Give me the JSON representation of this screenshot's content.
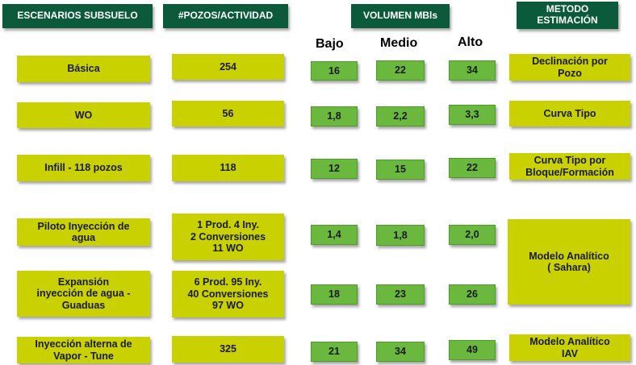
{
  "headers": {
    "scenarios": "ESCENARIOS SUBSUELO",
    "wells": "#POZOS/ACTIVIDAD",
    "volume": "VOLUMEN MBls",
    "method": "METODO\nESTIMACIÓN"
  },
  "levels": {
    "low": "Bajo",
    "mid": "Medio",
    "high": "Alto"
  },
  "rows": [
    {
      "scenario": "Básica",
      "wells": "254",
      "low": "16",
      "mid": "22",
      "high": "34",
      "method": "Declinación por\nPozo"
    },
    {
      "scenario": "WO",
      "wells": "56",
      "low": "1,8",
      "mid": "2,2",
      "high": "3,3",
      "method": "Curva Tipo"
    },
    {
      "scenario": "Infill - 118 pozos",
      "wells": "118",
      "low": "12",
      "mid": "15",
      "high": "22",
      "method": "Curva Tipo por\nBloque/Formación"
    },
    {
      "scenario": "Piloto Inyección de\nagua",
      "wells": "1 Prod.  4 Iny.\n2 Conversiones\n11 WO",
      "low": "1,4",
      "mid": "1,8",
      "high": "2,0"
    },
    {
      "scenario": "Expansión\ninyección de agua -\nGuaduas",
      "wells": "6 Prod.  95 Iny.\n40 Conversiones\n97 WO",
      "low": "18",
      "mid": "23",
      "high": "26"
    },
    {
      "scenario": "Inyección alterna de\nVapor - Tune",
      "wells": "325",
      "low": "21",
      "mid": "34",
      "high": "49",
      "method": "Modelo Analítico\nIAV"
    }
  ],
  "merged_method": "Modelo Analítico\n( Sahara)"
}
